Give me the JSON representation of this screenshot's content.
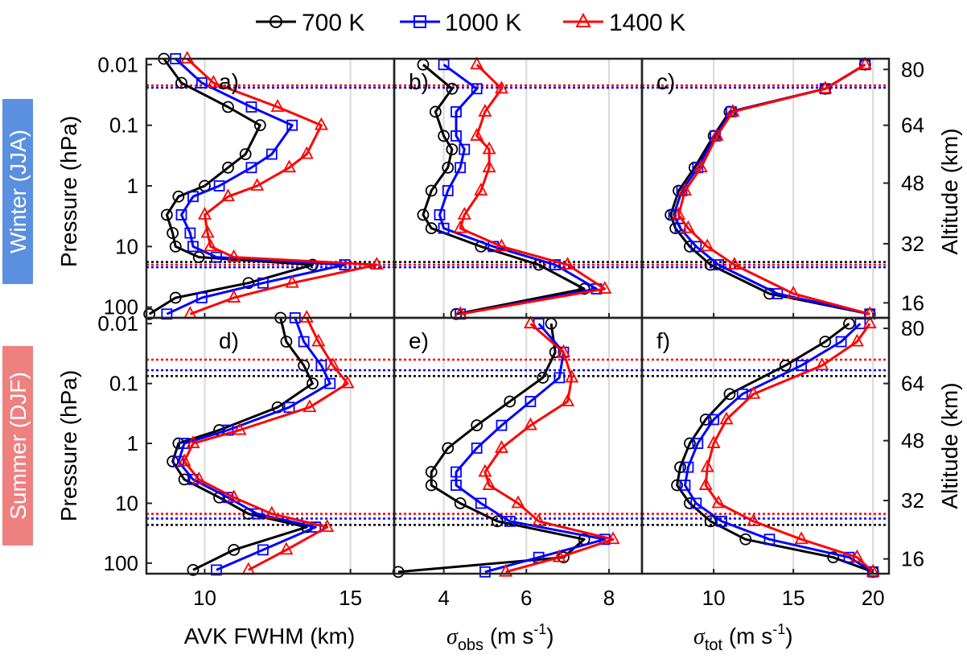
{
  "legend": [
    {
      "label": "700 K",
      "color": "#000000",
      "marker": "circle"
    },
    {
      "label": "1000 K",
      "color": "#0000ff",
      "marker": "square"
    },
    {
      "label": "1400 K",
      "color": "#ff0000",
      "marker": "triangle"
    }
  ],
  "row_labels": [
    {
      "text": "Winter (JJA)",
      "color": "#5b8fe0"
    },
    {
      "text": "Summer (DJF)",
      "color": "#ef8080"
    }
  ],
  "axis_text": {
    "ylabel_left": "Pressure (hPa)",
    "ylabel_right": "Altitude (km)",
    "xlabel_a": "AVK FWHM (km)",
    "xlabel_b_sym": "σ",
    "xlabel_b_sub": "obs",
    "xlabel_b_unit": " (m s",
    "xlabel_c_sym": "σ",
    "xlabel_c_sub": "tot",
    "xlabel_c_unit": " (m s",
    "exp": "-1",
    "close": ")"
  },
  "pressure_ticks": [
    "0.01",
    "0.1",
    "1",
    "10",
    "100"
  ],
  "altitude_ticks": [
    "80",
    "64",
    "48",
    "32",
    "16"
  ],
  "chart_data": [
    {
      "type": "line",
      "panel": "a)",
      "xlim": [
        8,
        16.5
      ],
      "xticks": [
        10,
        15
      ],
      "ylim_hPa": [
        150,
        0.008
      ],
      "ylog": true,
      "y_hPa": [
        130,
        70,
        40,
        20,
        15,
        10,
        6,
        3,
        1.5,
        1,
        0.5,
        0.3,
        0.1,
        0.05,
        0.02,
        0.008
      ],
      "series": [
        {
          "name": "700 K",
          "values": [
            8.1,
            9.0,
            11.5,
            13.7,
            9.8,
            9.0,
            8.9,
            8.7,
            9.1,
            10.0,
            10.8,
            11.4,
            11.9,
            10.8,
            9.2,
            8.6
          ]
        },
        {
          "name": "1000 K",
          "values": [
            8.7,
            9.9,
            12.0,
            14.8,
            10.4,
            9.6,
            9.5,
            9.2,
            9.6,
            10.5,
            11.6,
            12.3,
            13.0,
            11.6,
            9.9,
            9.0
          ]
        },
        {
          "name": "1400 K",
          "values": [
            9.5,
            11.0,
            13.0,
            15.9,
            11.0,
            10.2,
            10.1,
            10.0,
            10.8,
            11.8,
            12.9,
            13.5,
            14.0,
            12.5,
            10.3,
            9.4
          ]
        }
      ],
      "hlines_hPa": [
        18,
        20,
        22
      ],
      "hlines_top_hPa": [
        0.022,
        0.025
      ]
    },
    {
      "type": "line",
      "panel": "b)",
      "xlim": [
        2.8,
        8.8
      ],
      "xticks": [
        4,
        6,
        8
      ],
      "ylim_hPa": [
        150,
        0.008
      ],
      "ylog": true,
      "y_hPa": [
        130,
        50,
        20,
        10,
        5,
        3,
        1.2,
        0.5,
        0.25,
        0.15,
        0.06,
        0.025,
        0.01
      ],
      "series": [
        {
          "name": "700 K",
          "values": [
            4.3,
            7.4,
            6.3,
            4.9,
            3.7,
            3.5,
            3.7,
            4.1,
            4.2,
            4.0,
            3.8,
            4.2,
            3.5
          ]
        },
        {
          "name": "1000 K",
          "values": [
            4.4,
            7.7,
            6.7,
            5.2,
            4.0,
            3.9,
            4.1,
            4.4,
            4.5,
            4.3,
            4.3,
            4.8,
            4.0
          ]
        },
        {
          "name": "1400 K",
          "values": [
            4.4,
            7.9,
            7.0,
            5.4,
            4.4,
            4.5,
            4.9,
            5.1,
            5.1,
            4.8,
            5.0,
            5.4,
            4.8
          ]
        }
      ]
    },
    {
      "type": "line",
      "panel": "c)",
      "xlim": [
        5.5,
        21
      ],
      "xticks": [
        10,
        15,
        20
      ],
      "ylim_hPa": [
        150,
        0.008
      ],
      "ylog": true,
      "y_hPa": [
        130,
        60,
        20,
        10,
        5,
        3,
        1.2,
        0.5,
        0.15,
        0.06,
        0.025,
        0.01
      ],
      "series": [
        {
          "name": "700 K",
          "values": [
            19.8,
            13.5,
            9.8,
            8.5,
            7.6,
            7.3,
            7.8,
            8.8,
            10.0,
            11.0,
            17.0,
            19.5
          ]
        },
        {
          "name": "1000 K",
          "values": [
            19.8,
            14.0,
            10.3,
            8.9,
            7.9,
            7.5,
            8.0,
            9.0,
            10.1,
            11.1,
            17.0,
            19.5
          ]
        },
        {
          "name": "1400 K",
          "values": [
            19.8,
            15.0,
            11.3,
            9.6,
            8.4,
            7.8,
            8.2,
            9.2,
            10.2,
            11.2,
            17.0,
            19.5
          ]
        }
      ]
    },
    {
      "type": "line",
      "panel": "d)",
      "xlim": [
        8,
        16.5
      ],
      "xticks": [
        10,
        15
      ],
      "ylim_hPa": [
        150,
        0.008
      ],
      "ylog": true,
      "y_hPa": [
        130,
        60,
        25,
        15,
        8,
        4,
        2,
        1,
        0.6,
        0.25,
        0.1,
        0.05,
        0.02,
        0.008
      ],
      "series": [
        {
          "name": "700 K",
          "values": [
            9.6,
            11.0,
            13.5,
            11.5,
            10.5,
            9.3,
            8.9,
            9.1,
            10.5,
            12.5,
            13.7,
            13.4,
            12.8,
            12.6
          ]
        },
        {
          "name": "1000 K",
          "values": [
            10.4,
            12.0,
            13.8,
            11.8,
            10.8,
            9.6,
            9.1,
            9.3,
            10.8,
            12.9,
            14.3,
            14.0,
            13.4,
            13.1
          ]
        },
        {
          "name": "1400 K",
          "values": [
            11.5,
            12.8,
            14.2,
            12.3,
            11.0,
            9.8,
            9.3,
            9.6,
            11.2,
            13.6,
            14.9,
            14.4,
            13.9,
            13.5
          ]
        }
      ]
    },
    {
      "type": "line",
      "panel": "e)",
      "xlim": [
        2.8,
        8.8
      ],
      "xticks": [
        4,
        6,
        8
      ],
      "ylim_hPa": [
        150,
        0.008
      ],
      "ylog": true,
      "y_hPa": [
        140,
        80,
        40,
        20,
        10,
        5,
        3,
        1.2,
        0.5,
        0.2,
        0.08,
        0.03,
        0.01
      ],
      "series": [
        {
          "name": "700 K",
          "values": [
            2.9,
            6.9,
            7.4,
            5.3,
            4.4,
            3.7,
            3.7,
            4.1,
            4.8,
            5.6,
            6.4,
            6.7,
            6.6
          ]
        },
        {
          "name": "1000 K",
          "values": [
            5.0,
            6.3,
            7.9,
            5.6,
            4.9,
            4.3,
            4.3,
            4.8,
            5.4,
            6.1,
            6.8,
            6.9,
            6.3
          ]
        },
        {
          "name": "1400 K",
          "values": [
            5.5,
            6.8,
            8.1,
            6.3,
            5.8,
            5.1,
            5.0,
            5.4,
            6.1,
            7.0,
            7.1,
            6.9,
            6.1
          ]
        }
      ]
    },
    {
      "type": "line",
      "panel": "f)",
      "xlim": [
        5.5,
        21
      ],
      "xticks": [
        10,
        15,
        20
      ],
      "ylim_hPa": [
        150,
        0.008
      ],
      "ylog": true,
      "y_hPa": [
        140,
        80,
        40,
        20,
        10,
        5,
        2.5,
        1,
        0.4,
        0.15,
        0.05,
        0.02,
        0.01
      ],
      "series": [
        {
          "name": "700 K",
          "values": [
            20.0,
            17.5,
            12.0,
            9.8,
            8.5,
            7.7,
            7.9,
            8.5,
            9.5,
            11.0,
            14.5,
            17.0,
            18.5
          ]
        },
        {
          "name": "1000 K",
          "values": [
            20.0,
            18.5,
            13.5,
            10.5,
            8.9,
            8.2,
            8.4,
            9.0,
            10.0,
            11.8,
            15.5,
            18.0,
            19.2
          ]
        },
        {
          "name": "1400 K",
          "values": [
            20.0,
            19.0,
            15.5,
            12.5,
            10.3,
            9.5,
            9.6,
            10.0,
            10.8,
            12.5,
            16.8,
            19.0,
            19.8
          ]
        }
      ]
    }
  ]
}
